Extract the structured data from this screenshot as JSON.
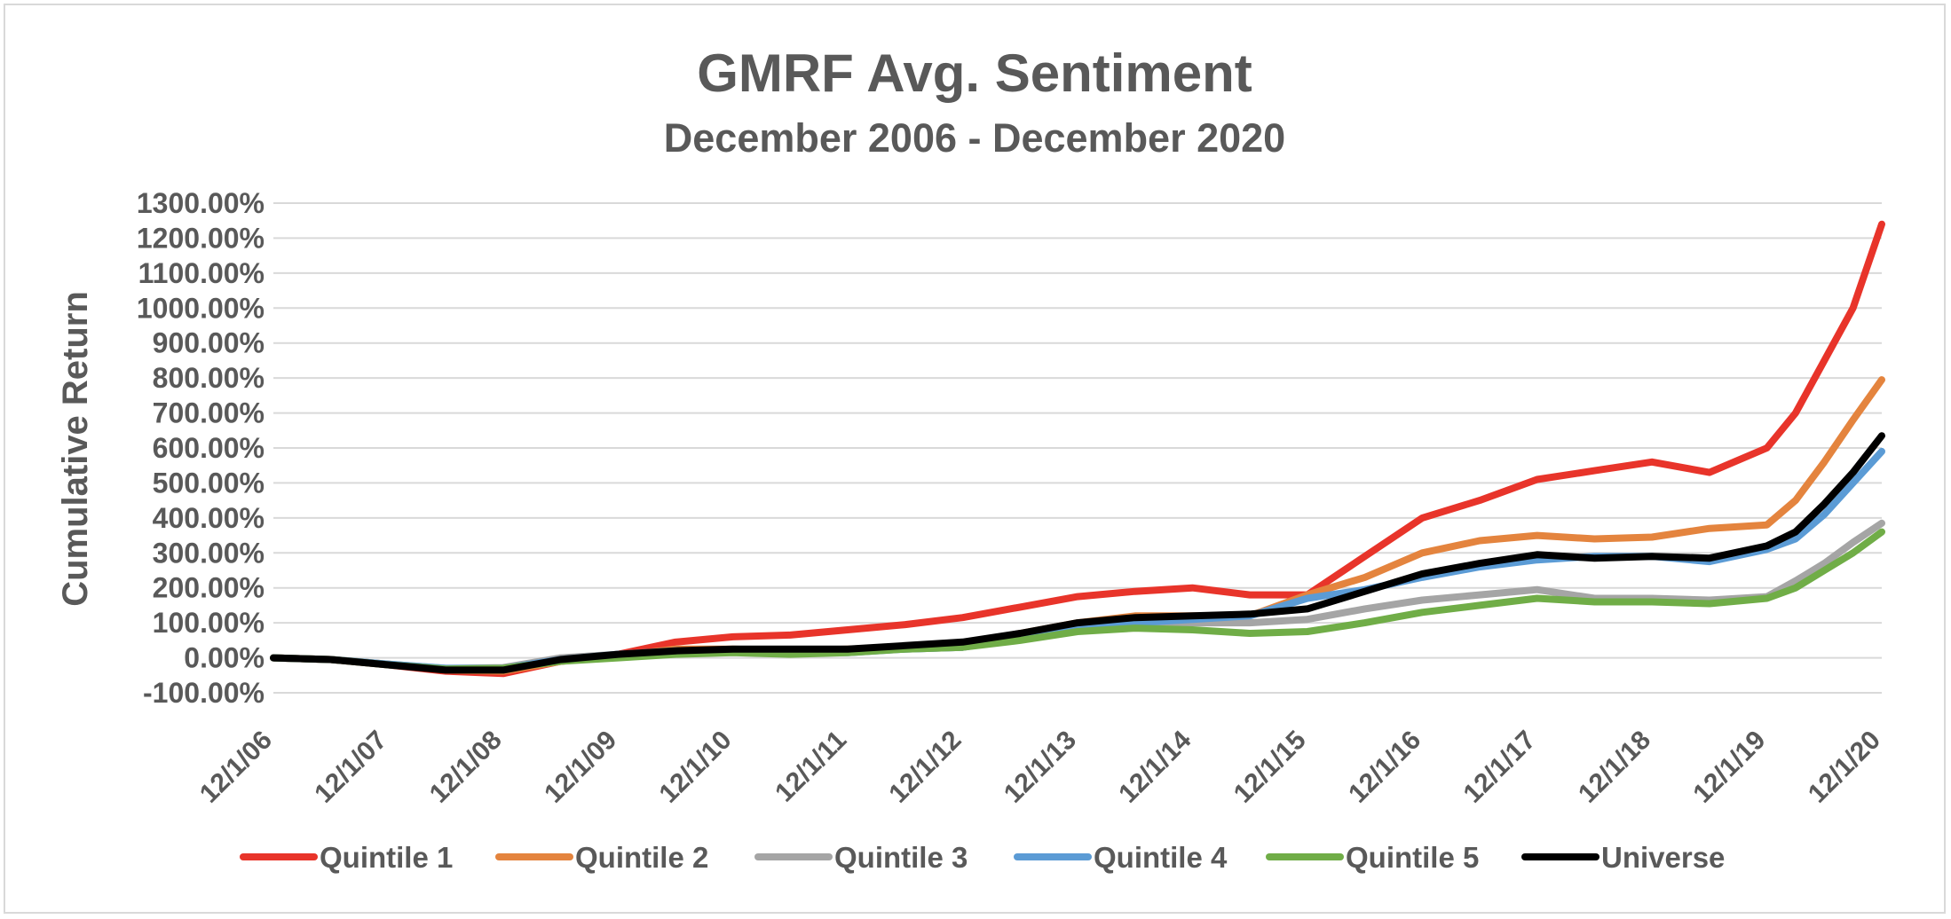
{
  "chart_data": {
    "type": "line",
    "title": "GMRF Avg. Sentiment",
    "subtitle": "December 2006 - December 2020",
    "ylabel": "Cumulative Return",
    "xlabel": "",
    "ylim": [
      -100,
      1300
    ],
    "ytick_values": [
      -100,
      0,
      100,
      200,
      300,
      400,
      500,
      600,
      700,
      800,
      900,
      1000,
      1100,
      1200,
      1300
    ],
    "ytick_labels": [
      "-100.00%",
      "0.00%",
      "100.00%",
      "200.00%",
      "300.00%",
      "400.00%",
      "500.00%",
      "600.00%",
      "700.00%",
      "800.00%",
      "900.00%",
      "1000.00%",
      "1100.00%",
      "1200.00%",
      "1300.00%"
    ],
    "xtick_labels": [
      "12/1/06",
      "12/1/07",
      "12/1/08",
      "12/1/09",
      "12/1/10",
      "12/1/11",
      "12/1/12",
      "12/1/13",
      "12/1/14",
      "12/1/15",
      "12/1/16",
      "12/1/17",
      "12/1/18",
      "12/1/19",
      "12/1/20"
    ],
    "x": [
      "12/1/06",
      "6/1/07",
      "12/1/07",
      "6/1/08",
      "12/1/08",
      "6/1/09",
      "12/1/09",
      "6/1/10",
      "12/1/10",
      "6/1/11",
      "12/1/11",
      "6/1/12",
      "12/1/12",
      "6/1/13",
      "12/1/13",
      "6/1/14",
      "12/1/14",
      "6/1/15",
      "12/1/15",
      "6/1/16",
      "12/1/16",
      "6/1/17",
      "12/1/17",
      "6/1/18",
      "12/1/18",
      "6/1/19",
      "12/1/19",
      "3/1/20",
      "6/1/20",
      "9/1/20",
      "12/1/20"
    ],
    "series": [
      {
        "name": "Quintile 1",
        "color": "#e8342a",
        "values": [
          0,
          -5,
          -20,
          -38,
          -45,
          -10,
          10,
          45,
          60,
          65,
          80,
          95,
          115,
          145,
          175,
          190,
          200,
          180,
          180,
          290,
          400,
          450,
          510,
          535,
          560,
          530,
          600,
          700,
          850,
          1000,
          1240
        ]
      },
      {
        "name": "Quintile 2",
        "color": "#e4843e",
        "values": [
          0,
          -5,
          -18,
          -35,
          -38,
          -10,
          5,
          25,
          25,
          20,
          25,
          30,
          40,
          70,
          100,
          120,
          120,
          120,
          180,
          230,
          300,
          335,
          350,
          340,
          345,
          370,
          380,
          450,
          560,
          680,
          795
        ]
      },
      {
        "name": "Quintile 3",
        "color": "#a5a5a5",
        "values": [
          0,
          -5,
          -18,
          -30,
          -28,
          0,
          10,
          20,
          20,
          15,
          20,
          25,
          30,
          55,
          80,
          100,
          100,
          100,
          110,
          140,
          165,
          180,
          195,
          170,
          170,
          165,
          175,
          220,
          270,
          330,
          385
        ]
      },
      {
        "name": "Quintile 4",
        "color": "#5b9bd5",
        "values": [
          0,
          -5,
          -18,
          -30,
          -30,
          -5,
          10,
          20,
          20,
          15,
          15,
          25,
          30,
          55,
          80,
          100,
          110,
          120,
          170,
          195,
          230,
          260,
          280,
          290,
          290,
          275,
          310,
          340,
          410,
          500,
          590
        ]
      },
      {
        "name": "Quintile 5",
        "color": "#70ad47",
        "values": [
          0,
          -5,
          -20,
          -32,
          -30,
          -10,
          0,
          10,
          15,
          10,
          15,
          25,
          30,
          50,
          75,
          85,
          80,
          70,
          75,
          100,
          130,
          150,
          170,
          160,
          160,
          155,
          170,
          200,
          250,
          300,
          360
        ]
      },
      {
        "name": "Universe",
        "color": "#000000",
        "values": [
          0,
          -5,
          -20,
          -35,
          -35,
          -5,
          10,
          20,
          25,
          25,
          25,
          35,
          45,
          70,
          100,
          115,
          120,
          125,
          140,
          190,
          240,
          270,
          295,
          285,
          290,
          285,
          320,
          360,
          440,
          530,
          635
        ]
      }
    ],
    "grid": true,
    "legend_position": "bottom"
  }
}
